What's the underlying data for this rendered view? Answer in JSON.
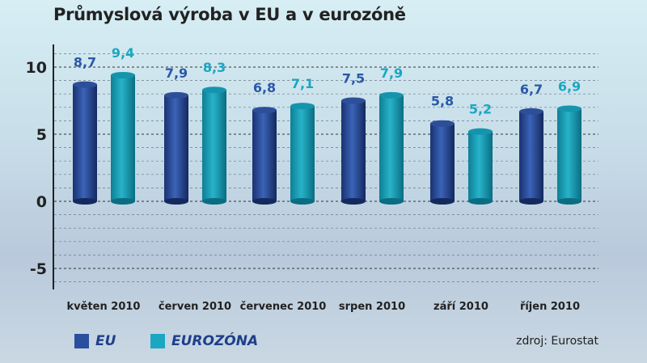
{
  "chart_data": {
    "type": "bar",
    "title": "Průmyslová výroba v EU a v eurozóně",
    "categories": [
      "květen 2010",
      "červen 2010",
      "červenec 2010",
      "srpen 2010",
      "září 2010",
      "říjen 2010"
    ],
    "series": [
      {
        "name": "EU",
        "values": [
          8.7,
          7.9,
          6.8,
          7.5,
          5.8,
          6.7
        ],
        "labels": [
          "8,7",
          "7,9",
          "6,8",
          "7,5",
          "5,8",
          "6,7"
        ],
        "color": "#2a4f9e"
      },
      {
        "name": "EUROZÓNA",
        "values": [
          9.4,
          8.3,
          7.1,
          7.9,
          5.2,
          6.9
        ],
        "labels": [
          "9,4",
          "8,3",
          "7,1",
          "7,9",
          "5,2",
          "6,9"
        ],
        "color": "#1aa7c2"
      }
    ],
    "yticks": [
      "10",
      "5",
      "0",
      "-5"
    ],
    "ytick_values": [
      10,
      5,
      0,
      -5
    ],
    "ylim": [
      -6.5,
      11.7
    ],
    "grid": true,
    "legend_placement": "bottom-left",
    "source": "zdroj: Eurostat"
  }
}
